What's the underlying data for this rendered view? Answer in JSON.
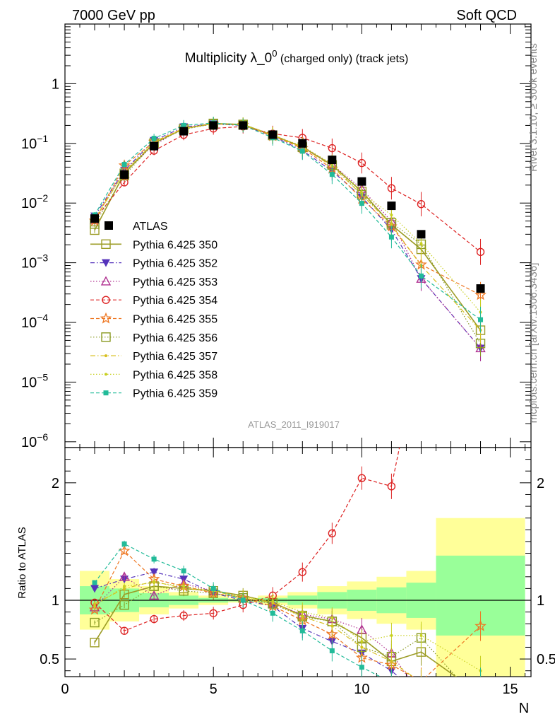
{
  "header": {
    "left": "7000 GeV pp",
    "right": "Soft QCD"
  },
  "side_text": {
    "rivet": "Rivet 3.1.10, ≥ 300k events",
    "mcplots": "mcplots.cern.ch [arXiv:1306.3436]"
  },
  "chart_data": {
    "type": "line",
    "title_main": "Multiplicity λ_0",
    "title_sup": "0",
    "title_suffix": " (charged only) (track jets)",
    "analysis_label": "ATLAS_2011_I919017",
    "xlabel": "N",
    "ratio_ylabel": "Ratio to ATLAS",
    "xlim": [
      0,
      15.7
    ],
    "ylim_log": [
      8e-07,
      10
    ],
    "ratio_ylim": [
      0.35,
      2.3
    ],
    "x_ticks": [
      0,
      5,
      10,
      15
    ],
    "x_tick_labels": [
      "0",
      "5",
      "10",
      "15"
    ],
    "y_ticks": [
      1e-06,
      1e-05,
      0.0001,
      0.001,
      0.01,
      0.1,
      1
    ],
    "y_tick_labels": [
      {
        "base": "10",
        "exp": "−6"
      },
      {
        "base": "10",
        "exp": "−5"
      },
      {
        "base": "10",
        "exp": "−4"
      },
      {
        "base": "10",
        "exp": "−3"
      },
      {
        "base": "10",
        "exp": "−2"
      },
      {
        "base": "10",
        "exp": "−1"
      },
      {
        "base": "1",
        "exp": ""
      }
    ],
    "ratio_ticks": [
      0.5,
      1,
      2
    ],
    "ratio_tick_labels": [
      "0.5",
      "1",
      "2"
    ],
    "data": {
      "name": "ATLAS",
      "x": [
        1,
        2,
        3,
        4,
        5,
        6,
        7,
        8,
        9,
        10,
        11,
        12,
        14
      ],
      "y": [
        0.0055,
        0.03,
        0.09,
        0.16,
        0.2,
        0.2,
        0.14,
        0.1,
        0.053,
        0.023,
        0.009,
        0.003,
        0.00037
      ]
    },
    "bands": {
      "edges": [
        0.5,
        1.5,
        2.5,
        3.5,
        4.5,
        5.5,
        6.5,
        7.5,
        8.5,
        9.5,
        10.5,
        11.5,
        12.5,
        15.5
      ],
      "inner_low": [
        0.88,
        0.9,
        0.94,
        0.96,
        0.98,
        0.99,
        0.98,
        0.96,
        0.93,
        0.91,
        0.89,
        0.85,
        0.7
      ],
      "inner_high": [
        1.12,
        1.1,
        1.06,
        1.04,
        1.02,
        1.01,
        1.02,
        1.04,
        1.07,
        1.09,
        1.11,
        1.15,
        1.38
      ],
      "outer_low": [
        0.75,
        0.82,
        0.88,
        0.93,
        0.96,
        0.98,
        0.96,
        0.93,
        0.88,
        0.84,
        0.8,
        0.75,
        0.0
      ],
      "outer_high": [
        1.25,
        1.18,
        1.12,
        1.07,
        1.04,
        1.02,
        1.04,
        1.07,
        1.12,
        1.16,
        1.2,
        1.25,
        1.7
      ]
    },
    "series": [
      {
        "name": "Pythia 6.425 350",
        "color": "#9c9c26",
        "marker": "square-open",
        "dash": "",
        "width": 1.6,
        "ratio": [
          0.64,
          1.05,
          1.12,
          1.1,
          1.08,
          1.04,
          0.98,
          0.87,
          0.82,
          0.68,
          0.48,
          0.56,
          0.2
        ]
      },
      {
        "name": "Pythia 6.425 352",
        "color": "#5533bb",
        "marker": "tri-down-filled",
        "dash": "6,3,1.5,3",
        "width": 1.2,
        "ratio": [
          1.1,
          1.18,
          1.24,
          1.18,
          1.06,
          1.0,
          0.95,
          0.76,
          0.65,
          0.55,
          0.4,
          0.18,
          0.1
        ]
      },
      {
        "name": "Pythia 6.425 353",
        "color": "#b03090",
        "marker": "tri-up-open",
        "dash": "1.5,2.5",
        "width": 1.2,
        "ratio": [
          0.94,
          1.2,
          1.04,
          1.14,
          1.08,
          1.02,
          0.97,
          0.88,
          0.84,
          0.75,
          0.55,
          0.18,
          0.1
        ]
      },
      {
        "name": "Pythia 6.425 354",
        "color": "#dd2222",
        "marker": "circle-open",
        "dash": "5,3",
        "width": 1.2,
        "ratio": [
          0.98,
          0.74,
          0.84,
          0.87,
          0.89,
          0.96,
          1.04,
          1.24,
          1.57,
          2.04,
          1.97,
          3.2,
          4.1
        ]
      },
      {
        "name": "Pythia 6.425 355",
        "color": "#ee7722",
        "marker": "star-open",
        "dash": "5,3",
        "width": 1.2,
        "ratio": [
          0.92,
          1.42,
          1.18,
          1.12,
          1.06,
          1.02,
          0.95,
          0.83,
          0.71,
          0.51,
          0.45,
          0.31,
          0.78
        ]
      },
      {
        "name": "Pythia 6.425 356",
        "color": "#8a9a22",
        "marker": "square-open",
        "dash": "1.5,2.5",
        "width": 1.2,
        "ratio": [
          0.81,
          0.96,
          1.12,
          1.08,
          1.06,
          1.02,
          0.97,
          0.86,
          0.82,
          0.6,
          0.52,
          0.68,
          0.12
        ]
      },
      {
        "name": "Pythia 6.425 357",
        "color": "#d8c020",
        "marker": "dot",
        "dash": "7,3,1.5,3",
        "width": 1.2,
        "ratio": [
          0.97,
          1.1,
          1.16,
          1.1,
          1.08,
          1.02,
          0.98,
          0.86,
          0.78,
          0.6,
          0.48,
          0.3,
          0.2
        ]
      },
      {
        "name": "Pythia 6.425 358",
        "color": "#c8d020",
        "marker": "dot",
        "dash": "1.5,2.5",
        "width": 1.2,
        "ratio": [
          0.95,
          1.12,
          1.15,
          1.12,
          1.08,
          1.03,
          0.99,
          0.9,
          0.85,
          0.65,
          0.7,
          0.7,
          0.4
        ]
      },
      {
        "name": "Pythia 6.425 359",
        "color": "#22bb99",
        "marker": "square-filled-small",
        "dash": "5,3",
        "width": 1.2,
        "ratio": [
          1.15,
          1.48,
          1.35,
          1.25,
          1.1,
          1.0,
          0.89,
          0.74,
          0.57,
          0.43,
          0.3,
          0.2,
          0.3
        ]
      }
    ]
  }
}
